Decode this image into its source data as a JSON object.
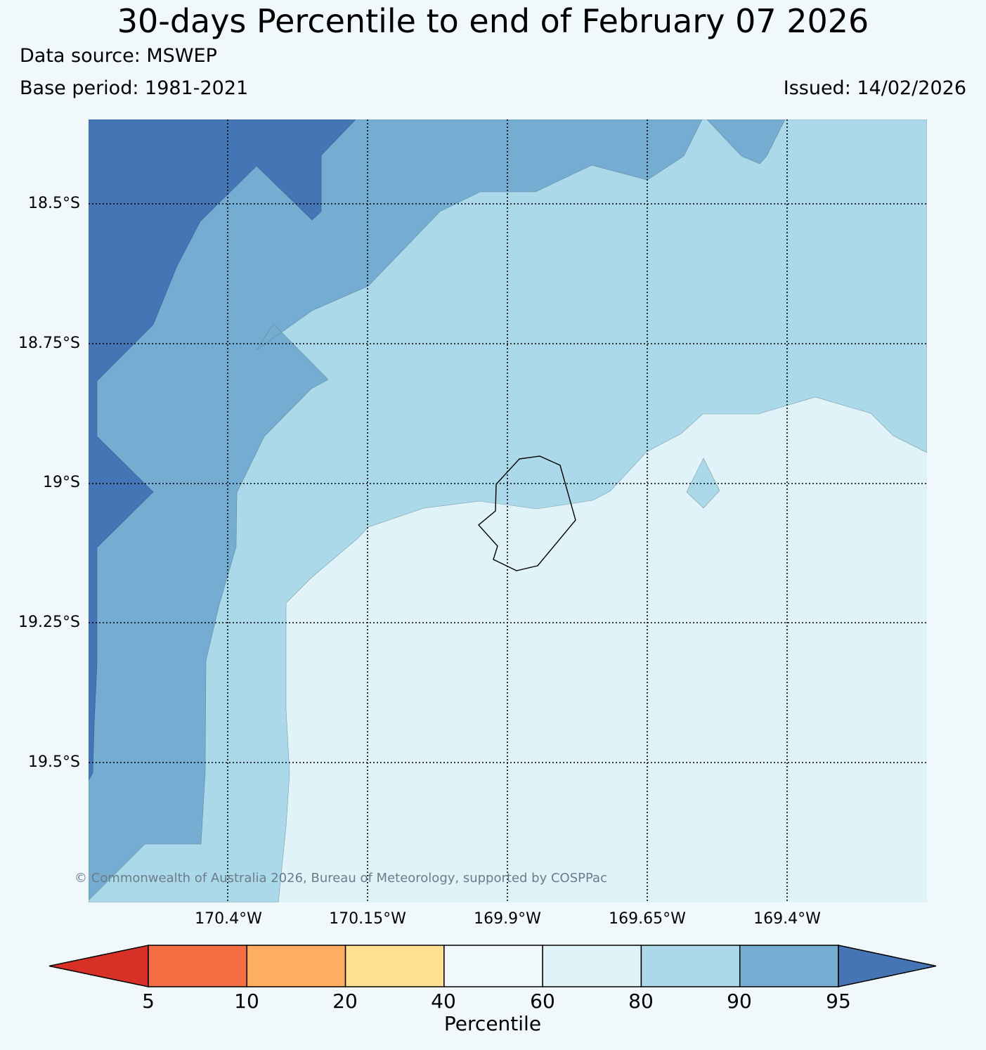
{
  "title": "30-days Percentile to end of February 07 2026",
  "data_source": "Data source: MSWEP",
  "base_period": "Base period: 1981-2021",
  "issued": "Issued: 14/02/2026",
  "copyright": "© Commonwealth of Australia 2026, Bureau of Meteorology, supported by COSPPac",
  "map": {
    "lat_ticks": [
      "18.5°S",
      "18.75°S",
      "19°S",
      "19.25°S",
      "19.5°S"
    ],
    "lon_ticks": [
      "170.4°W",
      "170.15°W",
      "169.9°W",
      "169.65°W",
      "169.4°W"
    ],
    "gridlines": "dotted",
    "island": "Niue"
  },
  "colorbar": {
    "title": "Percentile",
    "tick_labels": [
      "5",
      "10",
      "20",
      "40",
      "60",
      "80",
      "90",
      "95"
    ],
    "colors": [
      "#d73027",
      "#f46d43",
      "#fdae61",
      "#fee090",
      "#f1f8fb",
      "#e0f3f8",
      "#abd9e9",
      "#74add1",
      "#4575b4"
    ],
    "extend": "both"
  },
  "fill_colors": {
    "above_95": "#4575b4",
    "p90_95": "#74add1",
    "p80_90": "#abd9e9",
    "p60_80": "#e0f3f8"
  }
}
